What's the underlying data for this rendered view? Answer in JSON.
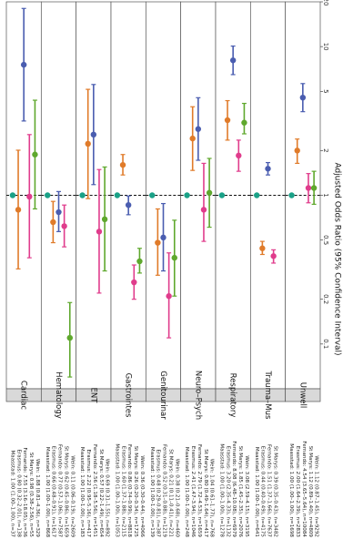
{
  "chart_data": {
    "type": "forest",
    "x_scale": "log",
    "xlim": [
      0.05,
      20
    ],
    "x_ticks": [
      0.1,
      0.2,
      0.5,
      1,
      2,
      5,
      10,
      20
    ],
    "x_tick_labels": [
      "0.1",
      "0.2",
      "0.5",
      "1",
      "2",
      "5",
      "10",
      "20"
    ],
    "xlabel": "Adjusted Odds Ratio (95% Confidence Interval)",
    "reference_line": 1,
    "series_colors": {
      "Maasstad": "#1aa187",
      "Erasmus": "#e07b2a",
      "Fernando": "#4a5db0",
      "St Marys": "#e03c8c",
      "Wein": "#5fa82d"
    },
    "groups": [
      {
        "name": "Cardiac",
        "rows": [
          {
            "hospital": "Maasstad",
            "label": "Maasstad: 1.00 (1.00–1.00), n=37",
            "or": 1.0,
            "lo": 1.0,
            "hi": 1.0
          },
          {
            "hospital": "Erasmus",
            "label": "Erasmus: 0.80 (0.32–2.01), n=138",
            "or": 0.8,
            "lo": 0.32,
            "hi": 2.01
          },
          {
            "hospital": "Fernando",
            "label": "Fernando: 7.55 (3.16–18.05), n=36",
            "or": 7.55,
            "lo": 3.16,
            "hi": 18.05
          },
          {
            "hospital": "St Marys",
            "label": "St Marys: 0.98 (0.38–2.56), n=55",
            "or": 0.98,
            "lo": 0.38,
            "hi": 2.56
          },
          {
            "hospital": "Wein",
            "label": "Wein: 1.88 (0.81–4.36), n=329",
            "or": 1.88,
            "lo": 0.81,
            "hi": 4.36
          }
        ]
      },
      {
        "name": "Hematology",
        "rows": [
          {
            "hospital": "Maasstad",
            "label": "Maasstad: 1.00 (1.00–1.00), n=868",
            "or": 1.0,
            "lo": 1.0,
            "hi": 1.0
          },
          {
            "hospital": "Erasmus",
            "label": "Erasmus: 0.66 (0.48–0.91), n=1617",
            "or": 0.66,
            "lo": 0.48,
            "hi": 0.91
          },
          {
            "hospital": "Fernando",
            "label": "Fernando: 0.77 (0.57–1.06), n=7587",
            "or": 0.77,
            "lo": 0.57,
            "hi": 1.06
          },
          {
            "hospital": "St Marys",
            "label": "St Marys: 0.62 (0.45–0.86), n=1659",
            "or": 0.62,
            "lo": 0.45,
            "hi": 0.86
          },
          {
            "hospital": "Wein",
            "label": "Wein: 0.11 (0.06–0.19), n=2609",
            "or": 0.11,
            "lo": 0.06,
            "hi": 0.19
          }
        ]
      },
      {
        "name": "ENT",
        "rows": [
          {
            "hospital": "Maasstad",
            "label": "Maasstad: 1.00 (1.00–1.00), n=183",
            "or": 1.0,
            "lo": 1.0,
            "hi": 1.0
          },
          {
            "hospital": "Erasmus",
            "label": "Erasmus: 2.22 (0.95–5.16), n=417",
            "or": 2.22,
            "lo": 0.95,
            "hi": 5.16
          },
          {
            "hospital": "Fernando",
            "label": "Fernando: 2.56 (1.18–5.56), n=1451",
            "or": 2.56,
            "lo": 1.18,
            "hi": 5.56
          },
          {
            "hospital": "St Marys",
            "label": "St Marys: 0.57 (0.22–1.49), n=654",
            "or": 0.57,
            "lo": 0.22,
            "hi": 1.49
          },
          {
            "hospital": "Wein",
            "label": "Wein: 0.69 (0.31–1.55), n=892",
            "or": 0.69,
            "lo": 0.31,
            "hi": 1.55
          }
        ]
      },
      {
        "name": "Gastrointes",
        "rows": [
          {
            "hospital": "Maasstad",
            "label": "Maasstad: 1.00 (1.00–1.00), n=1053",
            "or": 1.0,
            "lo": 1.0,
            "hi": 1.0
          },
          {
            "hospital": "Erasmus",
            "label": "Erasmus: 1.60 (1.37–1.88), n=2115",
            "or": 1.6,
            "lo": 1.37,
            "hi": 1.88
          },
          {
            "hospital": "Fernando",
            "label": "Fernando: 0.86 (0.74–0.99), n=8818",
            "or": 0.86,
            "lo": 0.74,
            "hi": 0.99
          },
          {
            "hospital": "St Marys",
            "label": "St Marys: 0.26 (0.20–0.34), n=1725",
            "or": 0.26,
            "lo": 0.2,
            "hi": 0.34
          },
          {
            "hospital": "Wein",
            "label": "Wein: 0.36 (0.30–0.44), n=4066",
            "or": 0.36,
            "lo": 0.3,
            "hi": 0.44
          }
        ]
      },
      {
        "name": "Genitourinar",
        "rows": [
          {
            "hospital": "Maasstad",
            "label": "Maasstad: 1.00 (1.00–1.00), n=139",
            "or": 1.0,
            "lo": 1.0,
            "hi": 1.0
          },
          {
            "hospital": "Erasmus",
            "label": "Erasmus: 0.48 (0.29–0.81), n=387",
            "or": 0.48,
            "lo": 0.29,
            "hi": 0.81
          },
          {
            "hospital": "Fernando",
            "label": "Fernando: 0.52 (0.31–0.88), n=1219",
            "or": 0.52,
            "lo": 0.31,
            "hi": 0.88
          },
          {
            "hospital": "St Marys",
            "label": "St Marys: 0.21 (0.11–0.41), n=221",
            "or": 0.21,
            "lo": 0.11,
            "hi": 0.41
          },
          {
            "hospital": "Wein",
            "label": "Wein: 0.38 (0.21–0.68), n=460",
            "or": 0.38,
            "lo": 0.21,
            "hi": 0.68
          }
        ]
      },
      {
        "name": "Neuro–Psych",
        "rows": [
          {
            "hospital": "Maasstad",
            "label": "Maasstad: 1.00 (1.00–1.00), n=248",
            "or": 1.0,
            "lo": 1.0,
            "hi": 1.0
          },
          {
            "hospital": "Erasmus",
            "label": "Erasmus: 2.41 (1.47–3.94), n=1046",
            "or": 2.41,
            "lo": 1.47,
            "hi": 3.94
          },
          {
            "hospital": "Fernando",
            "label": "Fernando: 2.79 (1.72–4.53), n=1659",
            "or": 2.79,
            "lo": 1.72,
            "hi": 4.53
          },
          {
            "hospital": "St Marys",
            "label": "St Marys: 0.80 (0.49–1.64), n=417",
            "or": 0.8,
            "lo": 0.49,
            "hi": 1.64
          },
          {
            "hospital": "Wein",
            "label": "Wein: 1.04 (0.61–1.77), n=768",
            "or": 1.04,
            "lo": 0.61,
            "hi": 1.77
          }
        ]
      },
      {
        "name": "Respiratory",
        "rows": [
          {
            "hospital": "Maasstad",
            "label": "Maasstad: 1.00 (1.00–1.00), n=1278",
            "or": 1.0,
            "lo": 1.0,
            "hi": 1.0
          },
          {
            "hospital": "Erasmus",
            "label": "Erasmus: 3.20 (2.35–4.33), n=1132",
            "or": 3.2,
            "lo": 2.35,
            "hi": 4.33
          },
          {
            "hospital": "Fernando",
            "label": "Fernando: 8.08 (6.48–10.08), n=6979",
            "or": 8.08,
            "lo": 6.48,
            "hi": 10.08
          },
          {
            "hospital": "St Marys",
            "label": "St Marys: 1.85 (1.45–2.35), n=2076",
            "or": 1.85,
            "lo": 1.45,
            "hi": 2.35
          },
          {
            "hospital": "Wein",
            "label": "Wein: 3.08 (2.59–4.15), n=3195",
            "or": 3.08,
            "lo": 2.59,
            "hi": 4.15
          }
        ]
      },
      {
        "name": "Trauma–Mus",
        "rows": [
          {
            "hospital": "Maasstad",
            "label": "Maasstad: 1.00 (1.00–1.00), n=641",
            "or": 1.0,
            "lo": 1.0,
            "hi": 1.0
          },
          {
            "hospital": "Erasmus",
            "label": "Erasmus: 0.44 (0.40–0.49), n=4175",
            "or": 0.44,
            "lo": 0.4,
            "hi": 0.49
          },
          {
            "hospital": "Fernando",
            "label": "Fernando: 1.51 (1.37–1.66), n=7637",
            "or": 1.51,
            "lo": 1.37,
            "hi": 1.66
          },
          {
            "hospital": "St Marys",
            "label": "St Marys: 0.39 (0.35–0.43), n=3482",
            "or": 0.39,
            "lo": 0.35,
            "hi": 0.43
          },
          {
            "hospital": "Wein",
            "label": "",
            "or": null,
            "lo": null,
            "hi": null
          }
        ]
      },
      {
        "name": "Unwell",
        "rows": [
          {
            "hospital": "Maasstad",
            "label": "Maasstad: 1.00 (1.00–1.00), n=1698",
            "or": 1.0,
            "lo": 1.0,
            "hi": 1.0
          },
          {
            "hospital": "Erasmus",
            "label": "Erasmus: 2.00 (1.64–2.39), n=2833",
            "or": 2.0,
            "lo": 1.64,
            "hi": 2.39
          },
          {
            "hospital": "Fernando",
            "label": "Fernando: 4.54 (3.65–5.64), n=10084",
            "or": 4.54,
            "lo": 3.65,
            "hi": 5.64
          },
          {
            "hospital": "St Marys",
            "label": "St Marys: 1.12 (0.89–1.40), n=4809",
            "or": 1.12,
            "lo": 0.89,
            "hi": 1.4
          },
          {
            "hospital": "Wein",
            "label": "Wein: 1.12 (0.87–1.45), n=9292",
            "or": 1.12,
            "lo": 0.87,
            "hi": 1.45
          }
        ]
      }
    ]
  }
}
